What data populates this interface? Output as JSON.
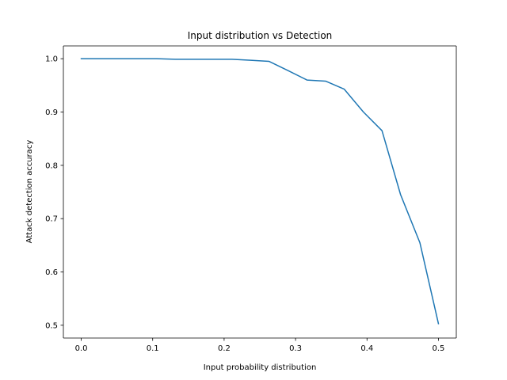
{
  "chart_data": {
    "type": "line",
    "title": "Input distribution vs Detection",
    "xlabel": "Input probability distribution",
    "ylabel": "Attack detection accuracy",
    "xlim": [
      -0.025,
      0.525
    ],
    "ylim": [
      0.476,
      1.024
    ],
    "xticks": [
      0.0,
      0.1,
      0.2,
      0.3,
      0.4,
      0.5
    ],
    "xtick_labels": [
      "0.0",
      "0.1",
      "0.2",
      "0.3",
      "0.4",
      "0.5"
    ],
    "yticks": [
      0.5,
      0.6,
      0.7,
      0.8,
      0.9,
      1.0
    ],
    "ytick_labels": [
      "0.5",
      "0.6",
      "0.7",
      "0.8",
      "0.9",
      "1.0"
    ],
    "grid": false,
    "series": [
      {
        "color": "#1f77b4",
        "x": [
          0.0,
          0.026,
          0.053,
          0.079,
          0.105,
          0.132,
          0.158,
          0.184,
          0.211,
          0.237,
          0.263,
          0.289,
          0.316,
          0.342,
          0.368,
          0.395,
          0.421,
          0.447,
          0.474,
          0.5
        ],
        "y": [
          1.0,
          1.0,
          1.0,
          1.0,
          1.0,
          0.999,
          0.999,
          0.999,
          0.999,
          0.997,
          0.995,
          0.978,
          0.96,
          0.958,
          0.943,
          0.9,
          0.865,
          0.745,
          0.655,
          0.503
        ]
      }
    ]
  }
}
